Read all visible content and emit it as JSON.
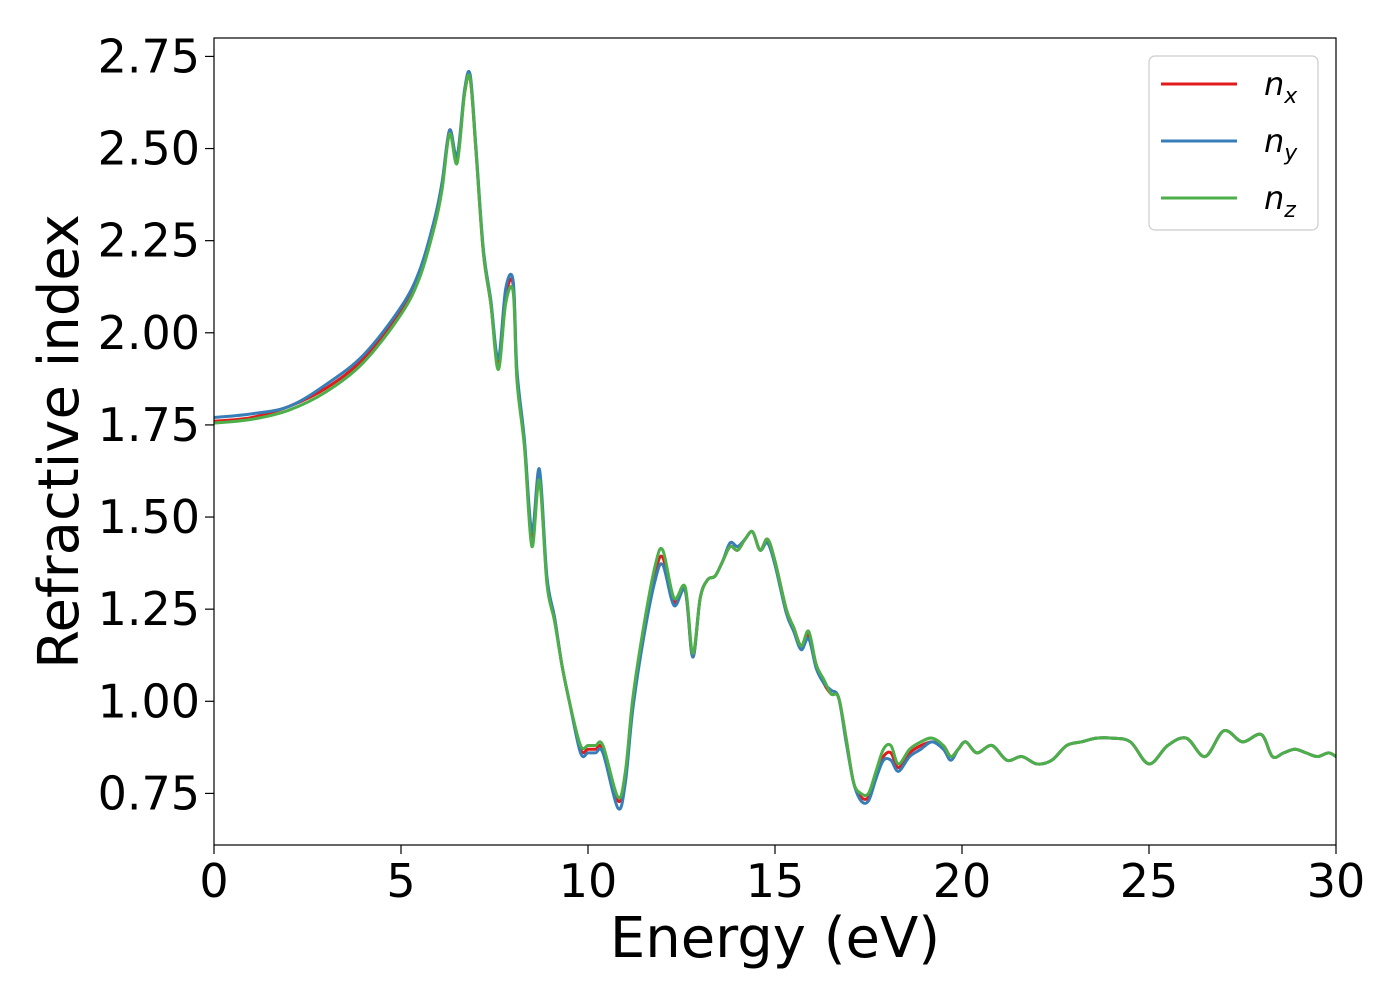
{
  "chart_data": {
    "type": "line",
    "title": "",
    "xlabel": "Energy (eV)",
    "ylabel": "Refractive index",
    "xlim": [
      0,
      30
    ],
    "ylim": [
      0.61,
      2.8
    ],
    "xticks": [
      0,
      5,
      10,
      15,
      20,
      25,
      30
    ],
    "xtick_labels": [
      "0",
      "5",
      "10",
      "15",
      "20",
      "25",
      "30"
    ],
    "yticks": [
      0.75,
      1.0,
      1.25,
      1.5,
      1.75,
      2.0,
      2.25,
      2.5,
      2.75
    ],
    "ytick_labels": [
      "0.75",
      "1.00",
      "1.25",
      "1.50",
      "1.75",
      "2.00",
      "2.25",
      "2.50",
      "2.75"
    ],
    "grid": false,
    "legend_position": "top-right",
    "series": [
      {
        "name": "n_x",
        "label_base": "n",
        "label_sub": "x",
        "color": "#e31a1c",
        "x": [
          0,
          1,
          2,
          3,
          4,
          5,
          5.5,
          5.9,
          6.1,
          6.3,
          6.5,
          6.7,
          6.85,
          7.0,
          7.2,
          7.4,
          7.6,
          7.8,
          8.0,
          8.1,
          8.3,
          8.5,
          8.7,
          8.9,
          9.1,
          9.3,
          9.5,
          9.8,
          10.0,
          10.2,
          10.4,
          10.8,
          11.0,
          11.2,
          11.5,
          11.8,
          12.0,
          12.3,
          12.6,
          12.8,
          13.0,
          13.2,
          13.4,
          13.6,
          13.8,
          14.0,
          14.2,
          14.4,
          14.6,
          14.8,
          15.0,
          15.3,
          15.5,
          15.7,
          15.9,
          16.1,
          16.3,
          16.5,
          16.7,
          16.9,
          17.1,
          17.3,
          17.5,
          17.7,
          17.9,
          18.1,
          18.3,
          18.6,
          18.9,
          19.2,
          19.5,
          19.7,
          19.9,
          20.1,
          20.4,
          20.8,
          21.2,
          21.6,
          22.0,
          22.4,
          22.8,
          23.2,
          23.6,
          24.0,
          24.5,
          25.0,
          25.5,
          26.0,
          26.5,
          27.0,
          27.5,
          28.0,
          28.3,
          28.6,
          28.9,
          29.2,
          29.5,
          29.8,
          30.0
        ],
        "y": [
          1.76,
          1.77,
          1.8,
          1.85,
          1.93,
          2.06,
          2.16,
          2.3,
          2.4,
          2.55,
          2.47,
          2.65,
          2.69,
          2.5,
          2.22,
          2.08,
          1.92,
          2.1,
          2.13,
          1.88,
          1.7,
          1.44,
          1.61,
          1.33,
          1.23,
          1.1,
          1.0,
          0.87,
          0.87,
          0.87,
          0.87,
          0.73,
          0.8,
          1.0,
          1.2,
          1.35,
          1.39,
          1.27,
          1.3,
          1.12,
          1.28,
          1.33,
          1.34,
          1.38,
          1.42,
          1.41,
          1.44,
          1.46,
          1.41,
          1.44,
          1.38,
          1.25,
          1.2,
          1.15,
          1.18,
          1.1,
          1.05,
          1.02,
          1.01,
          0.9,
          0.78,
          0.74,
          0.74,
          0.8,
          0.85,
          0.86,
          0.82,
          0.86,
          0.88,
          0.89,
          0.88,
          0.85,
          0.87,
          0.89,
          0.86,
          0.88,
          0.84,
          0.85,
          0.83,
          0.84,
          0.88,
          0.89,
          0.9,
          0.9,
          0.89,
          0.83,
          0.88,
          0.9,
          0.85,
          0.92,
          0.89,
          0.91,
          0.85,
          0.86,
          0.87,
          0.86,
          0.85,
          0.86,
          0.85
        ]
      },
      {
        "name": "n_y",
        "label_base": "n",
        "label_sub": "y",
        "color": "#377eb8",
        "x": [
          0,
          1,
          2,
          3,
          4,
          5,
          5.5,
          5.9,
          6.1,
          6.3,
          6.5,
          6.7,
          6.85,
          7.0,
          7.2,
          7.4,
          7.6,
          7.8,
          8.0,
          8.1,
          8.3,
          8.5,
          8.7,
          8.9,
          9.1,
          9.3,
          9.5,
          9.8,
          10.0,
          10.2,
          10.4,
          10.8,
          11.0,
          11.2,
          11.5,
          11.8,
          12.0,
          12.3,
          12.6,
          12.8,
          13.0,
          13.2,
          13.4,
          13.6,
          13.8,
          14.0,
          14.2,
          14.4,
          14.6,
          14.8,
          15.0,
          15.3,
          15.5,
          15.7,
          15.9,
          16.1,
          16.3,
          16.5,
          16.7,
          16.9,
          17.1,
          17.3,
          17.5,
          17.7,
          17.9,
          18.1,
          18.3,
          18.6,
          18.9,
          19.2,
          19.5,
          19.7,
          19.9,
          20.1,
          20.4,
          20.8,
          21.2,
          21.6,
          22.0,
          22.4,
          22.8,
          23.2,
          23.6,
          24.0,
          24.5,
          25.0,
          25.5,
          26.0,
          26.5,
          27.0,
          27.5,
          28.0,
          28.3,
          28.6,
          28.9,
          29.2,
          29.5,
          29.8,
          30.0
        ],
        "y": [
          1.77,
          1.78,
          1.8,
          1.86,
          1.94,
          2.07,
          2.17,
          2.31,
          2.41,
          2.55,
          2.48,
          2.66,
          2.7,
          2.51,
          2.23,
          2.09,
          1.93,
          2.12,
          2.14,
          1.9,
          1.71,
          1.46,
          1.63,
          1.34,
          1.23,
          1.1,
          1.0,
          0.86,
          0.86,
          0.86,
          0.86,
          0.71,
          0.78,
          0.98,
          1.18,
          1.33,
          1.37,
          1.26,
          1.3,
          1.12,
          1.28,
          1.33,
          1.34,
          1.38,
          1.43,
          1.42,
          1.44,
          1.46,
          1.41,
          1.43,
          1.37,
          1.24,
          1.19,
          1.14,
          1.17,
          1.09,
          1.05,
          1.03,
          1.01,
          0.89,
          0.78,
          0.73,
          0.73,
          0.79,
          0.84,
          0.84,
          0.81,
          0.85,
          0.87,
          0.89,
          0.87,
          0.84,
          0.87,
          0.89,
          0.86,
          0.88,
          0.84,
          0.85,
          0.83,
          0.84,
          0.88,
          0.89,
          0.9,
          0.9,
          0.89,
          0.83,
          0.88,
          0.9,
          0.85,
          0.92,
          0.89,
          0.91,
          0.85,
          0.86,
          0.87,
          0.86,
          0.85,
          0.86,
          0.85
        ]
      },
      {
        "name": "n_z",
        "label_base": "n",
        "label_sub": "z",
        "color": "#4daf4a",
        "x": [
          0,
          1,
          2,
          3,
          4,
          5,
          5.5,
          5.9,
          6.1,
          6.3,
          6.5,
          6.7,
          6.85,
          7.0,
          7.2,
          7.4,
          7.6,
          7.8,
          8.0,
          8.1,
          8.3,
          8.5,
          8.7,
          8.9,
          9.1,
          9.3,
          9.5,
          9.8,
          10.0,
          10.2,
          10.4,
          10.8,
          11.0,
          11.2,
          11.5,
          11.8,
          12.0,
          12.3,
          12.6,
          12.8,
          13.0,
          13.2,
          13.4,
          13.6,
          13.8,
          14.0,
          14.2,
          14.4,
          14.6,
          14.8,
          15.0,
          15.3,
          15.5,
          15.7,
          15.9,
          16.1,
          16.3,
          16.5,
          16.7,
          16.9,
          17.1,
          17.3,
          17.5,
          17.7,
          17.9,
          18.1,
          18.3,
          18.6,
          18.9,
          19.2,
          19.5,
          19.7,
          19.9,
          20.1,
          20.4,
          20.8,
          21.2,
          21.6,
          22.0,
          22.4,
          22.8,
          23.2,
          23.6,
          24.0,
          24.5,
          25.0,
          25.5,
          26.0,
          26.5,
          27.0,
          27.5,
          28.0,
          28.3,
          28.6,
          28.9,
          29.2,
          29.5,
          29.8,
          30.0
        ],
        "y": [
          1.755,
          1.765,
          1.79,
          1.84,
          1.92,
          2.05,
          2.15,
          2.29,
          2.39,
          2.54,
          2.46,
          2.65,
          2.69,
          2.5,
          2.22,
          2.08,
          1.9,
          2.08,
          2.11,
          1.87,
          1.69,
          1.42,
          1.6,
          1.32,
          1.22,
          1.1,
          1.0,
          0.88,
          0.88,
          0.88,
          0.88,
          0.74,
          0.81,
          1.01,
          1.21,
          1.37,
          1.41,
          1.28,
          1.31,
          1.13,
          1.28,
          1.33,
          1.34,
          1.38,
          1.42,
          1.41,
          1.44,
          1.46,
          1.41,
          1.44,
          1.38,
          1.25,
          1.2,
          1.15,
          1.19,
          1.1,
          1.06,
          1.02,
          1.01,
          0.9,
          0.78,
          0.75,
          0.75,
          0.81,
          0.87,
          0.88,
          0.83,
          0.87,
          0.89,
          0.9,
          0.88,
          0.85,
          0.87,
          0.89,
          0.86,
          0.88,
          0.84,
          0.85,
          0.83,
          0.84,
          0.88,
          0.89,
          0.9,
          0.9,
          0.89,
          0.83,
          0.88,
          0.9,
          0.85,
          0.92,
          0.89,
          0.91,
          0.85,
          0.86,
          0.87,
          0.86,
          0.85,
          0.86,
          0.85
        ]
      }
    ]
  }
}
